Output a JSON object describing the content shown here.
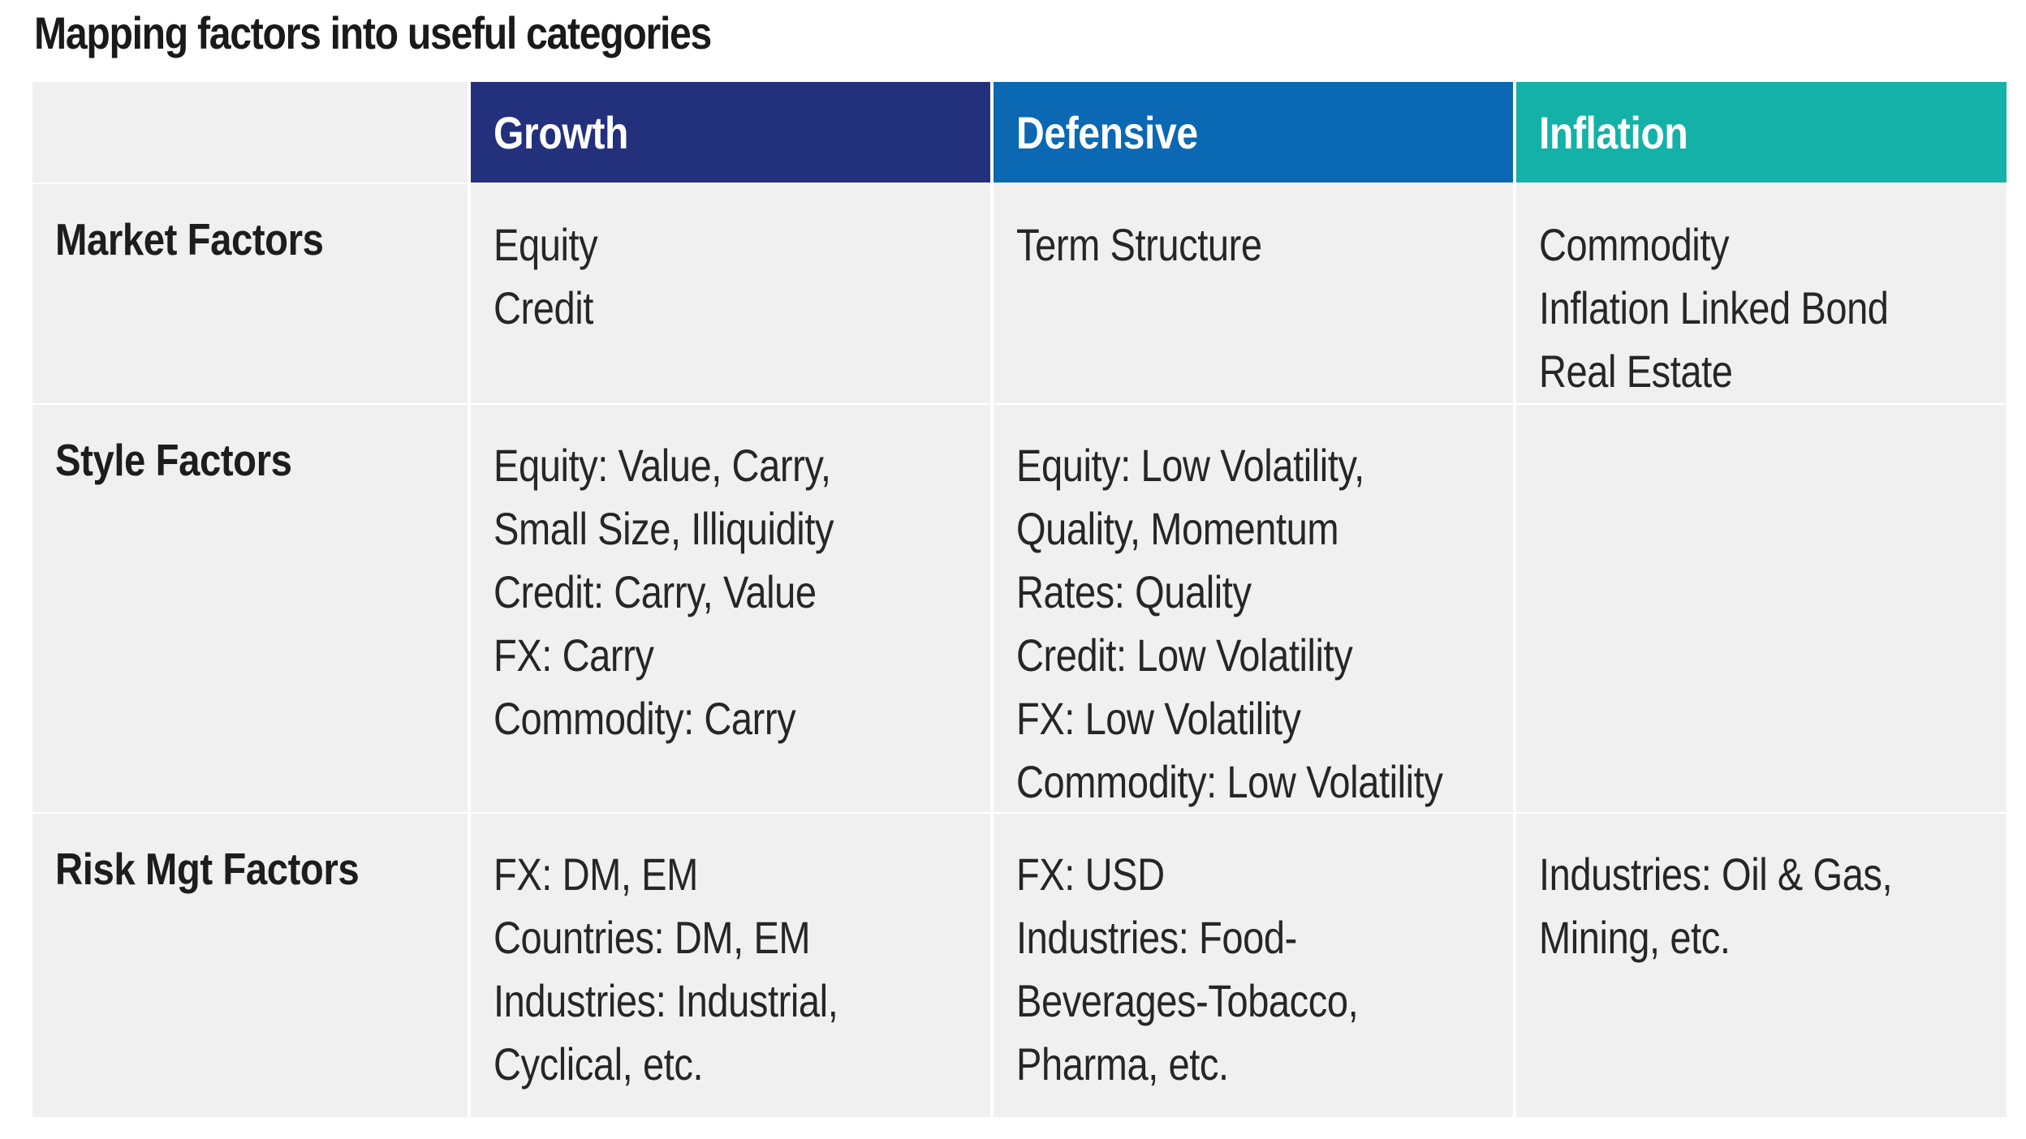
{
  "title": "Mapping factors into useful categories",
  "columns": {
    "blank": "",
    "growth": "Growth",
    "defensive": "Defensive",
    "inflation": "Inflation"
  },
  "colors": {
    "growth_header": "#23307c",
    "defensive_header": "#0b68b2",
    "inflation_header": "#14b1a8",
    "cell_background": "#f0f0f0"
  },
  "rows": [
    {
      "label": "Market Factors",
      "growth": [
        "Equity",
        "Credit"
      ],
      "defensive": [
        "Term Structure"
      ],
      "inflation": [
        "Commodity",
        "Inflation Linked Bond",
        "Real Estate"
      ]
    },
    {
      "label": "Style Factors",
      "growth": [
        "Equity: Value, Carry,",
        "Small Size, Illiquidity",
        "Credit: Carry, Value",
        "FX: Carry",
        "Commodity: Carry"
      ],
      "defensive": [
        "Equity: Low Volatility,",
        "Quality, Momentum",
        "Rates: Quality",
        "Credit: Low Volatility",
        "FX: Low Volatility",
        "Commodity: Low Volatility"
      ],
      "inflation": []
    },
    {
      "label": "Risk Mgt Factors",
      "growth": [
        "FX: DM, EM",
        "Countries: DM, EM",
        "Industries: Industrial,",
        "Cyclical, etc."
      ],
      "defensive": [
        "FX: USD",
        "Industries: Food-",
        "Beverages-Tobacco,",
        "Pharma, etc."
      ],
      "inflation": [
        "Industries: Oil & Gas,",
        "Mining, etc."
      ]
    }
  ]
}
